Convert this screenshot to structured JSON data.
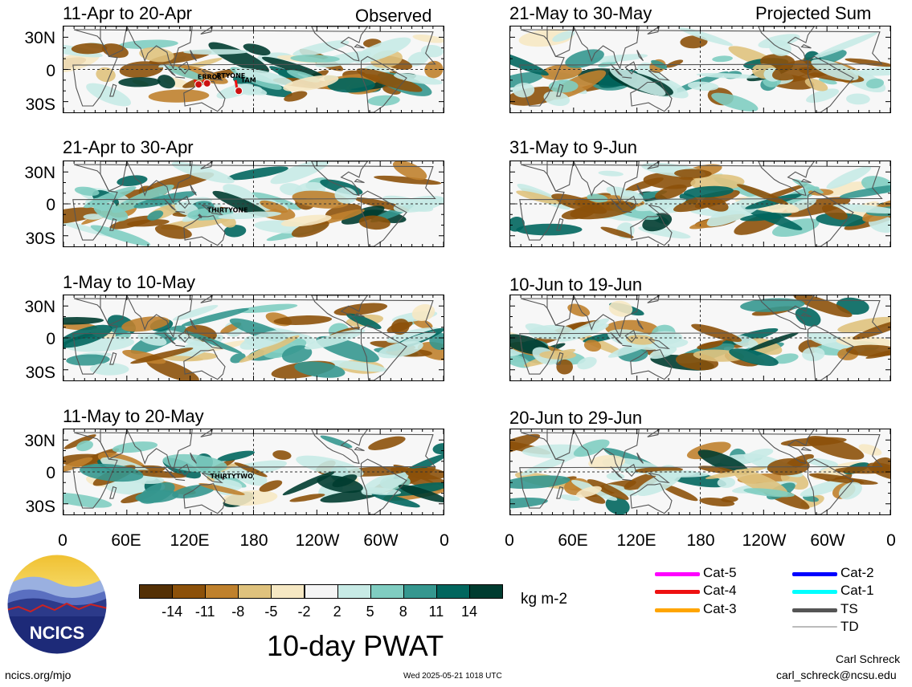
{
  "header": {
    "left_label": "Observed",
    "right_label": "Projected Sum"
  },
  "panels_left": [
    {
      "title": "11-Apr to 20-Apr",
      "storms": [
        "ERROL",
        "RTYONE",
        "TAM"
      ]
    },
    {
      "title": "21-Apr to 30-Apr",
      "storms": [
        "THIRTYONE"
      ]
    },
    {
      "title": "1-May to 10-May",
      "storms": []
    },
    {
      "title": "11-May to 20-May",
      "storms": [
        "THIRTYTWO"
      ]
    }
  ],
  "panels_right": [
    {
      "title": "21-May to 30-May"
    },
    {
      "title": "31-May to 9-Jun"
    },
    {
      "title": "10-Jun to 19-Jun"
    },
    {
      "title": "20-Jun to 29-Jun"
    }
  ],
  "lat_labels": [
    "30N",
    "0",
    "30S"
  ],
  "lon_labels": [
    "0",
    "60E",
    "120E",
    "180",
    "120W",
    "60W",
    "0"
  ],
  "colorbar": {
    "tick_labels": [
      "-14",
      "-11",
      "-8",
      "-5",
      "-2",
      "2",
      "5",
      "8",
      "11",
      "14"
    ],
    "colors": [
      "#543005",
      "#8c510a",
      "#bf812d",
      "#dfc27d",
      "#f6e8c3",
      "#f5f5f5",
      "#c7eae5",
      "#80cdc1",
      "#35978f",
      "#01665e",
      "#003c30"
    ],
    "units": "kg m-2"
  },
  "legend": [
    {
      "label": "Cat-5",
      "color": "#ff00ff"
    },
    {
      "label": "Cat-4",
      "color": "#ee1111"
    },
    {
      "label": "Cat-3",
      "color": "#ffa500"
    },
    {
      "label": "Cat-2",
      "color": "#0000ff"
    },
    {
      "label": "Cat-1",
      "color": "#00ffff"
    },
    {
      "label": "TS",
      "color": "#555555"
    },
    {
      "label": "TD",
      "color": "#bbbbbb"
    }
  ],
  "logo": {
    "text": "NCICS"
  },
  "main_title": "10-day PWAT",
  "footer": {
    "website": "ncics.org/mjo",
    "timestamp": "Wed 2025-05-21 1018 UTC",
    "author": "Carl Schreck",
    "email": "carl_schreck@ncsu.edu"
  }
}
